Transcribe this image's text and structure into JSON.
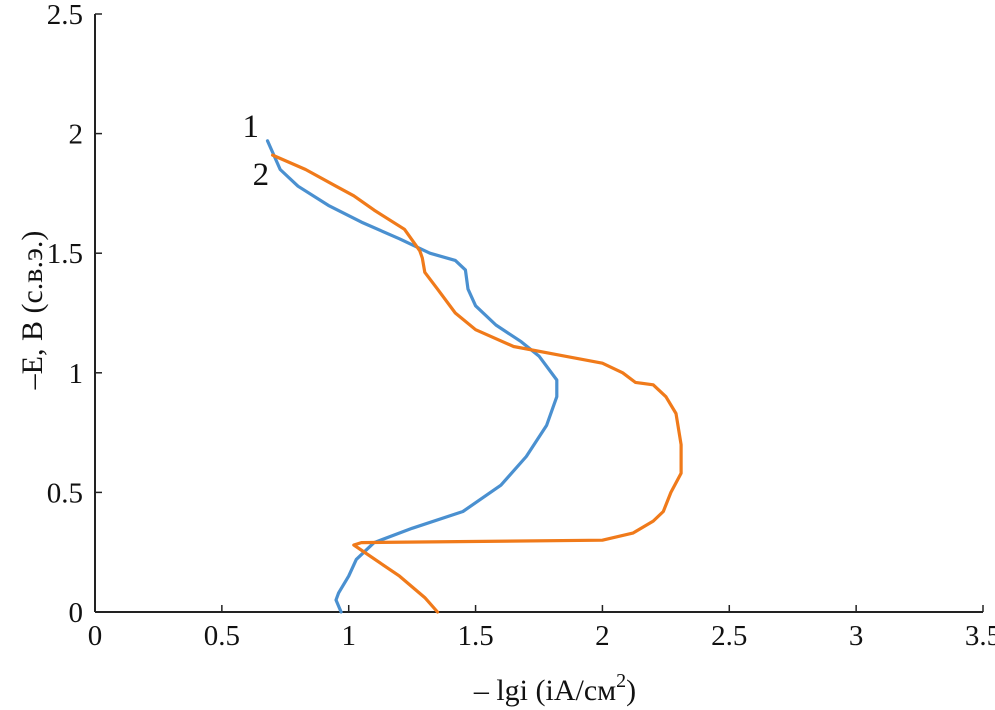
{
  "chart_data": {
    "type": "line",
    "xlabel_main": "– lgi (iA/см",
    "xlabel_sup": "2",
    "xlabel_close": ")",
    "ylabel": "–E, B (с.в.э.)",
    "xlim": [
      0,
      3.5
    ],
    "ylim": [
      0,
      2.5
    ],
    "x_ticks": [
      "0",
      "0.5",
      "1",
      "1.5",
      "2",
      "2.5",
      "3",
      "3.5"
    ],
    "y_ticks": [
      "0",
      "0.5",
      "1",
      "1.5",
      "2",
      "2.5"
    ],
    "grid": false,
    "legend": "none",
    "series": [
      {
        "name": "1",
        "color": "#4a90d0",
        "points": [
          [
            0.97,
            0.0
          ],
          [
            0.95,
            0.05
          ],
          [
            0.96,
            0.08
          ],
          [
            1.0,
            0.15
          ],
          [
            1.03,
            0.22
          ],
          [
            1.1,
            0.29
          ],
          [
            1.25,
            0.35
          ],
          [
            1.45,
            0.42
          ],
          [
            1.6,
            0.53
          ],
          [
            1.7,
            0.65
          ],
          [
            1.78,
            0.78
          ],
          [
            1.82,
            0.9
          ],
          [
            1.82,
            0.97
          ],
          [
            1.75,
            1.07
          ],
          [
            1.68,
            1.13
          ],
          [
            1.58,
            1.2
          ],
          [
            1.5,
            1.28
          ],
          [
            1.47,
            1.35
          ],
          [
            1.46,
            1.43
          ],
          [
            1.42,
            1.47
          ],
          [
            1.32,
            1.5
          ],
          [
            1.2,
            1.56
          ],
          [
            1.05,
            1.63
          ],
          [
            0.92,
            1.7
          ],
          [
            0.8,
            1.78
          ],
          [
            0.73,
            1.85
          ],
          [
            0.68,
            1.97
          ]
        ]
      },
      {
        "name": "2",
        "color": "#f07a1a",
        "points": [
          [
            1.35,
            0.0
          ],
          [
            1.3,
            0.06
          ],
          [
            1.2,
            0.15
          ],
          [
            1.02,
            0.28
          ],
          [
            1.05,
            0.29
          ],
          [
            2.0,
            0.3
          ],
          [
            2.12,
            0.33
          ],
          [
            2.2,
            0.38
          ],
          [
            2.24,
            0.42
          ],
          [
            2.27,
            0.5
          ],
          [
            2.31,
            0.58
          ],
          [
            2.31,
            0.7
          ],
          [
            2.29,
            0.83
          ],
          [
            2.25,
            0.9
          ],
          [
            2.2,
            0.95
          ],
          [
            2.13,
            0.96
          ],
          [
            2.08,
            1.0
          ],
          [
            2.0,
            1.04
          ],
          [
            1.85,
            1.07
          ],
          [
            1.65,
            1.11
          ],
          [
            1.5,
            1.18
          ],
          [
            1.42,
            1.25
          ],
          [
            1.35,
            1.35
          ],
          [
            1.3,
            1.42
          ],
          [
            1.29,
            1.48
          ],
          [
            1.28,
            1.51
          ],
          [
            1.22,
            1.6
          ],
          [
            1.1,
            1.68
          ],
          [
            1.02,
            1.74
          ],
          [
            0.95,
            1.78
          ],
          [
            0.83,
            1.85
          ],
          [
            0.7,
            1.91
          ]
        ]
      }
    ]
  }
}
